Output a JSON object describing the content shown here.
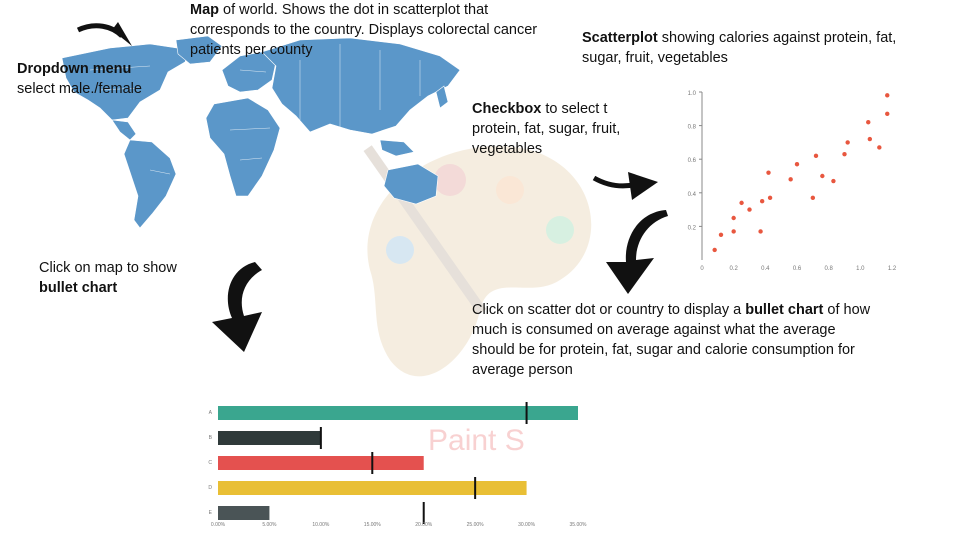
{
  "notes": {
    "map": {
      "bold": "Map",
      "text": " of world. Shows the dot in scatterplot that corresponds to the country. Displays colorectal cancer patients per county"
    },
    "dropdown": {
      "bold": "Dropdown menu",
      "text": "select male./female"
    },
    "scatter": {
      "bold": "Scatterplot",
      "text": " showing calories against protein, fat, sugar, fruit, vegetables"
    },
    "checkbox": {
      "bold": "Checkbox",
      "text": " to select t protein, fat, sugar, fruit, vegetables"
    },
    "click_map": {
      "text": "Click on map to show ",
      "bold": "bullet chart"
    },
    "click_scatter": {
      "text1": "Click on scatter dot or country to display a ",
      "bold": "bullet chart",
      "text2": " of how much is consumed on average against what the average should be for protein, fat, sugar and calorie consumption for average person"
    }
  },
  "watermark_text": "Paint S",
  "colors": {
    "map": "#5b97c9",
    "dots": "#e8573f",
    "teal": "#3aa68f",
    "dark": "#2f3a3a",
    "red": "#e4514f",
    "yellow": "#e9bf35",
    "grey": "#4a5456"
  },
  "chart_data": [
    {
      "type": "scatter",
      "x": [
        0.08,
        0.12,
        0.2,
        0.2,
        0.25,
        0.3,
        0.37,
        0.38,
        0.42,
        0.43,
        0.56,
        0.6,
        0.7,
        0.72,
        0.76,
        0.83,
        0.9,
        0.92,
        1.05,
        1.06,
        1.12,
        1.17,
        1.17
      ],
      "y": [
        0.06,
        0.15,
        0.17,
        0.25,
        0.34,
        0.3,
        0.17,
        0.35,
        0.52,
        0.37,
        0.48,
        0.57,
        0.37,
        0.62,
        0.5,
        0.47,
        0.63,
        0.7,
        0.82,
        0.72,
        0.67,
        0.87,
        0.98
      ],
      "xticks": [
        "0",
        "0.2",
        "0.4",
        "0.6",
        "0.8",
        "1.0",
        "1.2"
      ],
      "yticks": [
        "0.2",
        "0.4",
        "0.6",
        "0.8",
        "1.0"
      ],
      "xlim": [
        0,
        1.2
      ],
      "ylim": [
        0,
        1.0
      ]
    },
    {
      "type": "bar",
      "orientation": "horizontal",
      "categories": [
        "A",
        "B",
        "C",
        "D",
        "E"
      ],
      "values": [
        35,
        10,
        20,
        30,
        5
      ],
      "targets": [
        30,
        10,
        15,
        25,
        20
      ],
      "xticks": [
        "0.00%",
        "5.00%",
        "10.00%",
        "15.00%",
        "20.00%",
        "25.00%",
        "30.00%",
        "35.00%"
      ],
      "xlim": [
        0,
        35
      ]
    }
  ]
}
